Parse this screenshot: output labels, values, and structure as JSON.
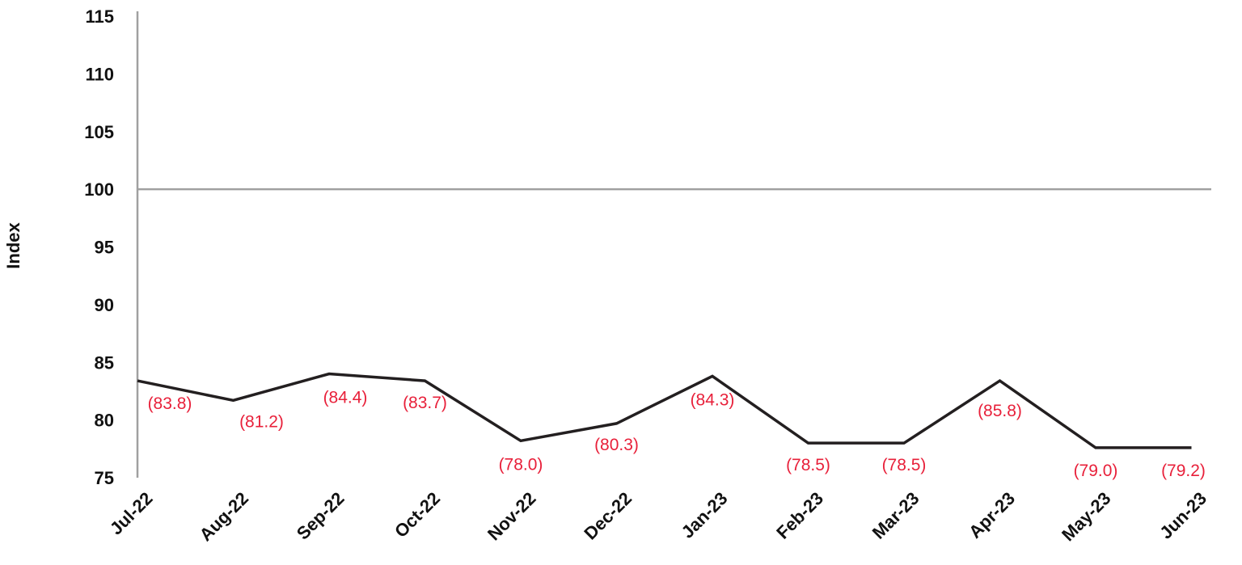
{
  "chart_data": {
    "type": "line",
    "title": "",
    "xlabel": "",
    "ylabel": "Index",
    "ylim": [
      75,
      115
    ],
    "yticks": [
      "115",
      "110",
      "105",
      "100",
      "95",
      "90",
      "85",
      "80",
      "75"
    ],
    "categories": [
      "Jul-22",
      "Aug-22",
      "Sep-22",
      "Oct-22",
      "Nov-22",
      "Dec-22",
      "Jan-23",
      "Feb-23",
      "Mar-23",
      "Apr-23",
      "May-23",
      "Jun-23"
    ],
    "series": [
      {
        "values": [
          83.4,
          81.7,
          84.0,
          83.4,
          78.2,
          79.7,
          83.8,
          78.0,
          78.0,
          83.4,
          77.6,
          77.6
        ],
        "labels": [
          "(83.8)",
          "(81.2)",
          "(84.4)",
          "(83.7)",
          "(78.0)",
          "(80.3)",
          "(84.3)",
          "(78.5)",
          "(78.5)",
          "(85.8)",
          "(79.0)",
          "(79.2)"
        ]
      }
    ],
    "reference_line": 100,
    "grid": false,
    "legend": "none",
    "colors": {
      "line": "#231f20",
      "axis": "#a0a0a0",
      "label": "#e8203a",
      "text": "#111111"
    }
  }
}
